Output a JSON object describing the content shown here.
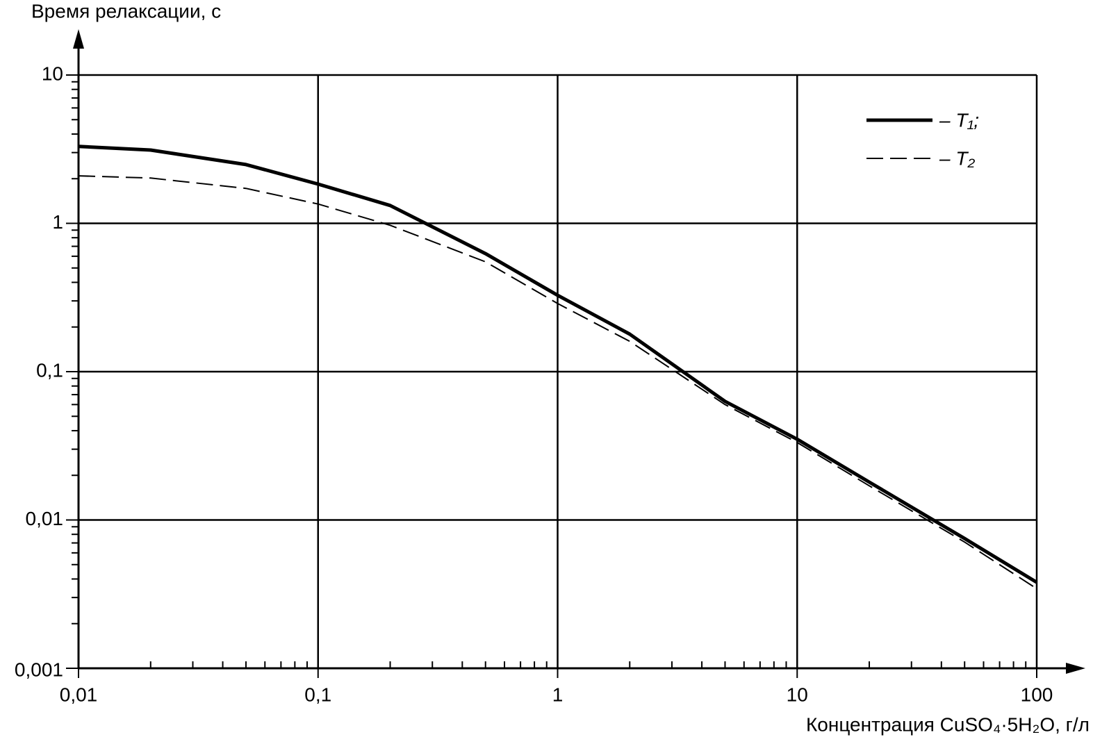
{
  "chart_data": {
    "type": "line",
    "y_label": "Время релаксации, с",
    "x_label": "Концентрация CuSO₄·5H₂O, г/л",
    "x": [
      0.01,
      0.02,
      0.05,
      0.1,
      0.2,
      0.5,
      1,
      2,
      5,
      10,
      20,
      50,
      100
    ],
    "series": [
      {
        "name": "– T₁;",
        "color": "#000000",
        "width": 5,
        "dash": false,
        "values": [
          3.3,
          3.12,
          2.49,
          1.84,
          1.32,
          0.625,
          0.327,
          0.179,
          0.063,
          0.035,
          0.018,
          0.0075,
          0.0038
        ]
      },
      {
        "name": "– T₂",
        "color": "#000000",
        "width": 2,
        "dash": true,
        "values": [
          2.09,
          2.02,
          1.72,
          1.35,
          0.97,
          0.55,
          0.288,
          0.16,
          0.06,
          0.0333,
          0.017,
          0.0071,
          0.00344
        ]
      }
    ],
    "xlog": true,
    "ylog": true,
    "xlim": [
      0.01,
      100
    ],
    "ylim": [
      0.001,
      10
    ],
    "xticks": [
      {
        "value": 0.01,
        "label": "0,01"
      },
      {
        "value": 0.1,
        "label": "0,1"
      },
      1,
      10,
      100
    ],
    "yticks": [
      {
        "value": 0.001,
        "label": "0,001"
      },
      {
        "value": 0.01,
        "label": "0,01"
      },
      {
        "value": 0.1,
        "label": "0,1"
      },
      1,
      10
    ],
    "grid": true,
    "legend": "upper right"
  }
}
